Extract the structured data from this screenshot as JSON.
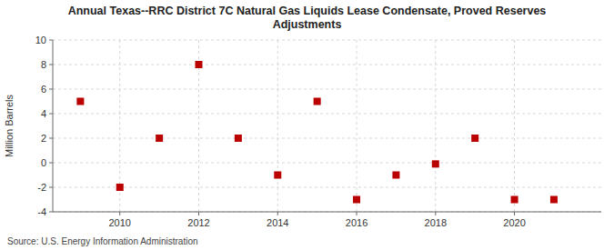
{
  "chart_data": {
    "type": "scatter",
    "title": "Annual Texas--RRC District 7C Natural Gas Liquids Lease Condensate, Proved Reserves\nAdjustments",
    "ylabel": "Million Barrels",
    "source": "Source: U.S. Energy Information Administration",
    "x": [
      2009,
      2010,
      2011,
      2012,
      2013,
      2014,
      2015,
      2016,
      2017,
      2018,
      2019,
      2020,
      2021
    ],
    "values": [
      5.0,
      -2.0,
      2.0,
      8.0,
      2.0,
      -1.0,
      5.0,
      -3.0,
      -1.0,
      -0.1,
      2.0,
      -3.0,
      -3.0
    ],
    "color": "#bb0000",
    "marker": "square",
    "xlim": [
      2008.3,
      2022.2
    ],
    "xticks": [
      2010,
      2012,
      2014,
      2016,
      2018,
      2020
    ],
    "ylim": [
      -4,
      10
    ],
    "yticks": [
      -4,
      -2,
      0,
      2,
      4,
      6,
      8,
      10
    ],
    "grid": true
  }
}
